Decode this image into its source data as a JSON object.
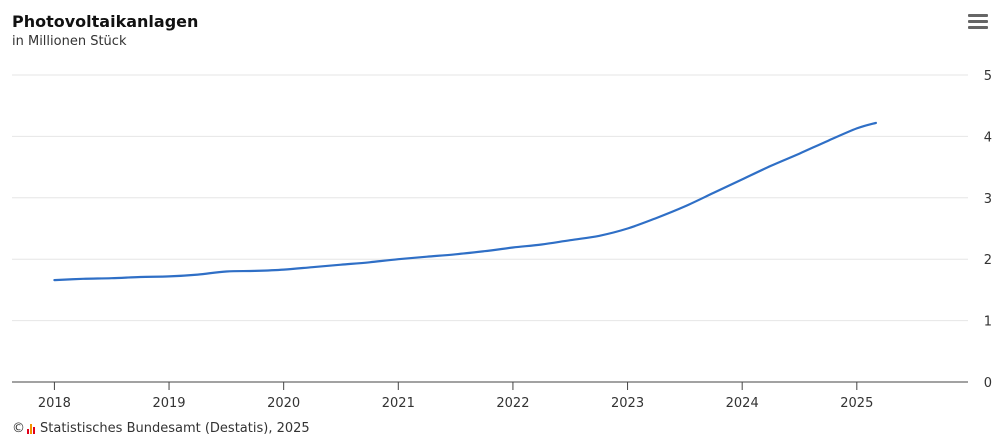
{
  "header": {
    "title": "Photovoltaikanlagen",
    "subtitle": "in Millionen Stück",
    "menu_icon": "hamburger-menu-icon"
  },
  "footer": {
    "copyright_symbol": "©",
    "source": "Statistisches Bundesamt (Destatis), 2025",
    "logo_icon": "destatis-logo-icon"
  },
  "colors": {
    "line": "#2f6fc6",
    "grid": "#e6e6e6",
    "axis": "#444444",
    "logo": [
      "#e2001a",
      "#f39200",
      "#e2001a"
    ]
  },
  "chart_data": {
    "type": "line",
    "title": "Photovoltaikanlagen",
    "subtitle": "in Millionen Stück",
    "xlabel": "",
    "ylabel": "",
    "y_axis_position": "right",
    "ylim": [
      0,
      5
    ],
    "xlim": [
      "2018-01-01",
      "2025-10-01"
    ],
    "yticks": [
      0,
      1,
      2,
      3,
      4,
      5
    ],
    "xticks": [
      2018,
      2019,
      2020,
      2021,
      2022,
      2023,
      2024,
      2025
    ],
    "grid": true,
    "legend": "none",
    "series": [
      {
        "name": "",
        "x": [
          "2018-01",
          "2018-04",
          "2018-07",
          "2018-10",
          "2019-01",
          "2019-04",
          "2019-07",
          "2019-10",
          "2020-01",
          "2020-04",
          "2020-07",
          "2020-10",
          "2021-01",
          "2021-04",
          "2021-07",
          "2021-10",
          "2022-01",
          "2022-04",
          "2022-07",
          "2022-10",
          "2023-01",
          "2023-04",
          "2023-07",
          "2023-10",
          "2024-01",
          "2024-04",
          "2024-07",
          "2024-10",
          "2025-01",
          "2025-03"
        ],
        "values": [
          1.66,
          1.68,
          1.69,
          1.71,
          1.72,
          1.75,
          1.8,
          1.81,
          1.83,
          1.87,
          1.91,
          1.95,
          2.0,
          2.04,
          2.08,
          2.13,
          2.19,
          2.24,
          2.31,
          2.38,
          2.5,
          2.67,
          2.86,
          3.08,
          3.3,
          3.52,
          3.72,
          3.93,
          4.13,
          4.22
        ]
      }
    ]
  }
}
